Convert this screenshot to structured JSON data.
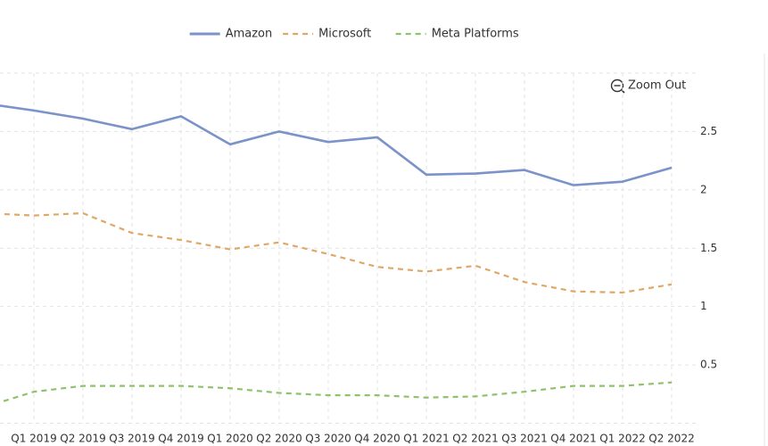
{
  "chart_data": {
    "type": "line",
    "zoom_button": "Zoom Out",
    "categories": [
      null,
      "Q1 2019",
      "Q2 2019",
      "Q3 2019",
      "Q4 2019",
      "Q1 2020",
      "Q2 2020",
      "Q3 2020",
      "Q4 2020",
      "Q1 2021",
      "Q2 2021",
      "Q3 2021",
      "Q4 2021",
      "Q1 2022",
      "Q2 2022"
    ],
    "series": [
      {
        "name": "Amazon",
        "color": "#7b93c8",
        "dashed": false,
        "values": [
          2.74,
          2.68,
          2.61,
          2.52,
          2.63,
          2.39,
          2.5,
          2.41,
          2.45,
          2.13,
          2.14,
          2.17,
          2.04,
          2.07,
          2.19
        ]
      },
      {
        "name": "Microsoft",
        "color": "#e0a868",
        "dashed": true,
        "values": [
          1.8,
          1.78,
          1.8,
          1.63,
          1.57,
          1.49,
          1.55,
          1.45,
          1.34,
          1.3,
          1.35,
          1.21,
          1.13,
          1.12,
          1.19
        ]
      },
      {
        "name": "Meta Platforms",
        "color": "#8fc26a",
        "dashed": true,
        "values": [
          0.14,
          0.27,
          0.32,
          0.32,
          0.32,
          0.3,
          0.26,
          0.24,
          0.24,
          0.22,
          0.23,
          0.27,
          0.32,
          0.32,
          0.35
        ]
      }
    ],
    "ylim": [
      0,
      3.0
    ],
    "yticks": [
      0.5,
      1.0,
      1.5,
      2.0,
      2.5
    ],
    "grid": true,
    "legend": "top"
  }
}
